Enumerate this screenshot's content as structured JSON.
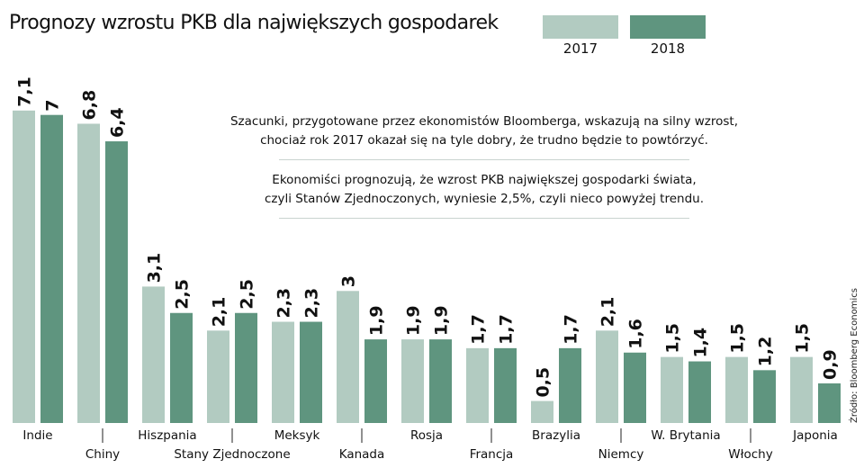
{
  "chart_data": {
    "type": "bar",
    "title": "Prognozy wzrostu PKB dla największych gospodarek",
    "xlabel": "",
    "ylabel": "",
    "ylim": [
      0,
      7.1
    ],
    "grid": false,
    "legend_position": "top-right",
    "categories": [
      "Indie",
      "Chiny",
      "Hiszpania",
      "Stany Zjednoczone",
      "Meksyk",
      "Kanada",
      "Rosja",
      "Francja",
      "Brazylia",
      "Niemcy",
      "W. Brytania",
      "Włochy",
      "Japonia"
    ],
    "series": [
      {
        "name": "2017",
        "color": "#b2cbc1",
        "values": [
          7.1,
          6.8,
          3.1,
          2.1,
          2.3,
          3.0,
          1.9,
          1.7,
          0.5,
          2.1,
          1.5,
          1.5,
          1.5
        ],
        "labels": [
          "7,1",
          "6,8",
          "3,1",
          "2,1",
          "2,3",
          "3",
          "1,9",
          "1,7",
          "0,5",
          "2,1",
          "1,5",
          "1,5",
          "1,5"
        ]
      },
      {
        "name": "2018",
        "color": "#5f957f",
        "values": [
          7.0,
          6.4,
          2.5,
          2.5,
          2.3,
          1.9,
          1.9,
          1.7,
          1.7,
          1.6,
          1.4,
          1.2,
          0.9
        ],
        "labels": [
          "7",
          "6,4",
          "2,5",
          "2,5",
          "2,3",
          "1,9",
          "1,9",
          "1,7",
          "1,7",
          "1,6",
          "1,4",
          "1,2",
          "0,9"
        ]
      }
    ],
    "annotations": [
      "Szacunki, przygotowane przez ekonomistów Bloomberga, wskazują na silny wzrost, chociaż rok 2017 okazał się na tyle dobry, że trudno będzie to powtórzyć.",
      "Ekonomiści prognozują, że wzrost PKB największej gospodarki świata, czyli Stanów Zjednoczonych, wyniesie 2,5%, czyli nieco powyżej trendu."
    ],
    "source": "Źródło: Bloomberg Economics"
  },
  "header": {
    "title": "Prognozy wzrostu PKB dla największych gospodarek"
  },
  "legend": [
    {
      "label": "2017",
      "color": "#b2cbc1"
    },
    {
      "label": "2018",
      "color": "#5f957f"
    }
  ],
  "note": {
    "line1a": "Szacunki, przygotowane przez ekonomistów Bloomberga, wskazują na silny wzrost,",
    "line1b": "chociaż rok 2017 okazał się na tyle dobry, że trudno będzie to powtórzyć.",
    "line2a": "Ekonomiści prognozują, że wzrost PKB największej gospodarki świata,",
    "line2b": "czyli Stanów Zjednoczonych, wyniesie 2,5%, czyli nieco powyżej trendu."
  },
  "source": "Źródło: Bloomberg Economics"
}
